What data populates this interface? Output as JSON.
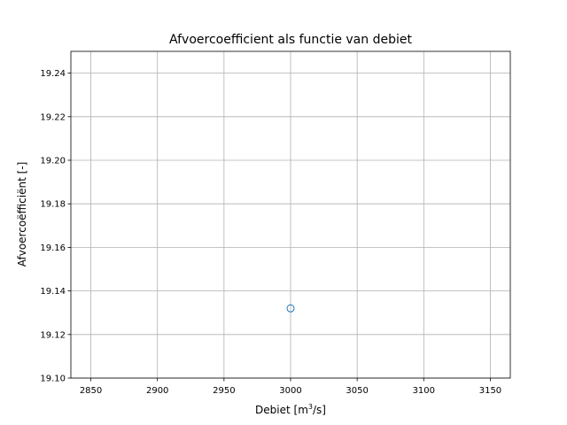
{
  "chart_data": {
    "type": "scatter",
    "title": "Afvoercoefficient als functie van debiet",
    "xlabel": "Debiet [m3/s]",
    "xlabel_parts": {
      "pre": "Debiet [m",
      "sup": "3",
      "post": "/s]"
    },
    "ylabel": "Afvoercoëfficiënt [-]",
    "xlim": [
      2835,
      3165
    ],
    "ylim": [
      19.1,
      19.25
    ],
    "xticks": [
      2850,
      2900,
      2950,
      3000,
      3050,
      3100,
      3150
    ],
    "yticks": [
      19.1,
      19.12,
      19.14,
      19.16,
      19.18,
      19.2,
      19.22,
      19.24
    ],
    "ytick_labels": [
      "19.10",
      "19.12",
      "19.14",
      "19.16",
      "19.18",
      "19.20",
      "19.22",
      "19.24"
    ],
    "grid": true,
    "marker": "open-circle",
    "marker_color": "#1f77b4",
    "points": [
      {
        "x": 3000,
        "y": 19.132
      }
    ]
  }
}
